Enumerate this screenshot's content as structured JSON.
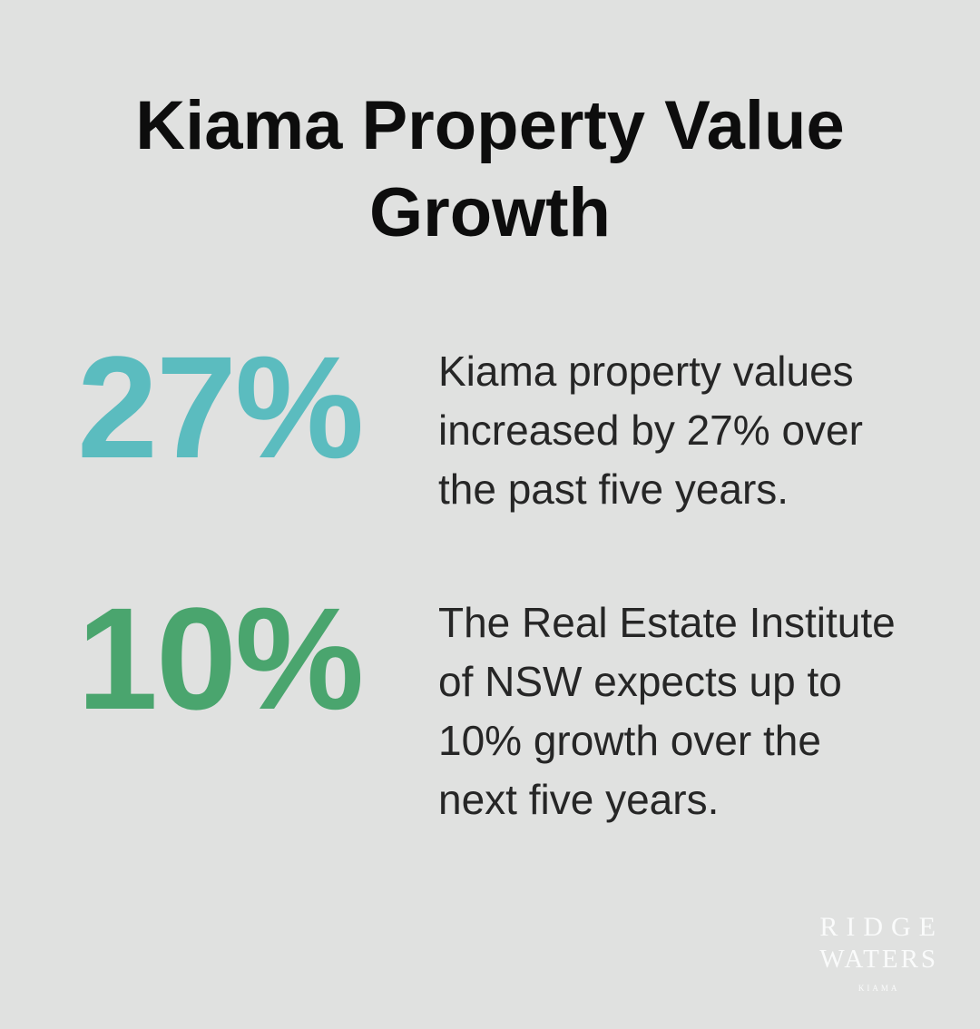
{
  "title": "Kiama Property Value Growth",
  "colors": {
    "background": "#e0e1e0",
    "title_text": "#0d0d0d",
    "body_text": "#262626",
    "stat_teal": "#5bbcbf",
    "stat_green": "#4aa56e",
    "logo_text": "#fafbfb"
  },
  "stats": [
    {
      "value": "27%",
      "color": "#5bbcbf",
      "description": "Kiama property values increased by 27% over the past five years."
    },
    {
      "value": "10%",
      "color": "#4aa56e",
      "description": "The Real Estate Institute of NSW expects up to 10% growth over the next five years."
    }
  ],
  "logo": {
    "line1": "RIDGE",
    "line2": "WATERS",
    "line3": "KIAMA"
  },
  "chart_data": {
    "type": "table",
    "title": "Kiama Property Value Growth",
    "rows": [
      {
        "value_percent": 27,
        "label": "Kiama property values increased by 27% over the past five years."
      },
      {
        "value_percent": 10,
        "label": "The Real Estate Institute of NSW expects up to 10% growth over the next five years."
      }
    ]
  }
}
